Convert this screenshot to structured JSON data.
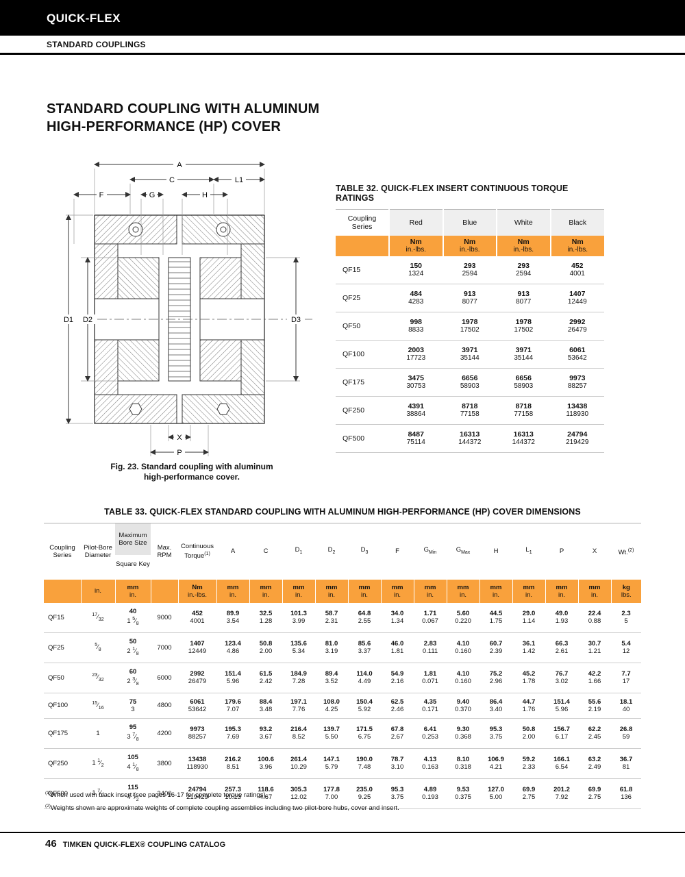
{
  "colors": {
    "accent_orange": "#F9A13C",
    "header_gray": "#EFEFEF",
    "bore_gray": "#E4E4E4",
    "bar_black": "#000000"
  },
  "header": {
    "brand": "QUICK-FLEX",
    "section": "STANDARD COUPLINGS"
  },
  "title": {
    "line1": "STANDARD COUPLING WITH ALUMINUM",
    "line2": "HIGH-PERFORMANCE (HP) COVER"
  },
  "figure": {
    "caption_line1": "Fig. 23. Standard coupling with aluminum",
    "caption_line2": "high-performance cover.",
    "labels": {
      "a": "A",
      "c": "C",
      "l1": "L1",
      "f": "F",
      "g": "G",
      "h": "H",
      "d1": "D1",
      "d2": "D2",
      "d3": "D3",
      "x": "X",
      "p": "P"
    }
  },
  "table32": {
    "title": "TABLE 32. QUICK-FLEX INSERT CONTINUOUS TORQUE RATINGS",
    "col_series": "Coupling Series",
    "col_headers": [
      "Red",
      "Blue",
      "White",
      "Black"
    ],
    "unit_top": "Nm",
    "unit_bottom": "in.-lbs.",
    "rows": [
      {
        "series": "QF15",
        "values": [
          [
            "150",
            "1324"
          ],
          [
            "293",
            "2594"
          ],
          [
            "293",
            "2594"
          ],
          [
            "452",
            "4001"
          ]
        ]
      },
      {
        "series": "QF25",
        "values": [
          [
            "484",
            "4283"
          ],
          [
            "913",
            "8077"
          ],
          [
            "913",
            "8077"
          ],
          [
            "1407",
            "12449"
          ]
        ]
      },
      {
        "series": "QF50",
        "values": [
          [
            "998",
            "8833"
          ],
          [
            "1978",
            "17502"
          ],
          [
            "1978",
            "17502"
          ],
          [
            "2992",
            "26479"
          ]
        ]
      },
      {
        "series": "QF100",
        "values": [
          [
            "2003",
            "17723"
          ],
          [
            "3971",
            "35144"
          ],
          [
            "3971",
            "35144"
          ],
          [
            "6061",
            "53642"
          ]
        ]
      },
      {
        "series": "QF175",
        "values": [
          [
            "3475",
            "30753"
          ],
          [
            "6656",
            "58903"
          ],
          [
            "6656",
            "58903"
          ],
          [
            "9973",
            "88257"
          ]
        ]
      },
      {
        "series": "QF250",
        "values": [
          [
            "4391",
            "38864"
          ],
          [
            "8718",
            "77158"
          ],
          [
            "8718",
            "77158"
          ],
          [
            "13438",
            "118930"
          ]
        ]
      },
      {
        "series": "QF500",
        "values": [
          [
            "8487",
            "75114"
          ],
          [
            "16313",
            "144372"
          ],
          [
            "16313",
            "144372"
          ],
          [
            "24794",
            "219429"
          ]
        ]
      }
    ]
  },
  "table33": {
    "title": "TABLE 33. QUICK-FLEX STANDARD COUPLING WITH ALUMINUM HIGH-PERFORMANCE (HP) COVER DIMENSIONS",
    "headers": {
      "series": "Coupling Series",
      "pilot": "Pilot-Bore Diameter",
      "bore_top": "Maximum Bore Size",
      "bore_bottom": "Square Key",
      "rpm": "Max. RPM",
      "torque": "Continuous Torque",
      "torque_sup": "(1)",
      "a": "A",
      "c": "C",
      "d": "D",
      "d1_sub": "1",
      "d2_sub": "2",
      "d3_sub": "3",
      "f": "F",
      "g": "G",
      "gmin_sub": "Min",
      "gmax_sub": "Max",
      "h": "H",
      "l": "L",
      "l1_sub": "1",
      "p": "P",
      "x": "X",
      "wt": "Wt.",
      "wt_sup": "(2)"
    },
    "units": {
      "pilot": "in.",
      "mm": "mm",
      "inch": "in.",
      "nm": "Nm",
      "inlbs": "in.-lbs.",
      "kg": "kg",
      "lbs": "lbs."
    },
    "rows": [
      {
        "series": "QF15",
        "pilot": "17/32",
        "bore_mm": "40",
        "bore_in": "1 5/8",
        "rpm": "9000",
        "cells": [
          [
            "452",
            "4001"
          ],
          [
            "89.9",
            "3.54"
          ],
          [
            "32.5",
            "1.28"
          ],
          [
            "101.3",
            "3.99"
          ],
          [
            "58.7",
            "2.31"
          ],
          [
            "64.8",
            "2.55"
          ],
          [
            "34.0",
            "1.34"
          ],
          [
            "1.71",
            "0.067"
          ],
          [
            "5.60",
            "0.220"
          ],
          [
            "44.5",
            "1.75"
          ],
          [
            "29.0",
            "1.14"
          ],
          [
            "49.0",
            "1.93"
          ],
          [
            "22.4",
            "0.88"
          ],
          [
            "2.3",
            "5"
          ]
        ]
      },
      {
        "series": "QF25",
        "pilot": "5/8",
        "bore_mm": "50",
        "bore_in": "2 1/8",
        "rpm": "7000",
        "cells": [
          [
            "1407",
            "12449"
          ],
          [
            "123.4",
            "4.86"
          ],
          [
            "50.8",
            "2.00"
          ],
          [
            "135.6",
            "5.34"
          ],
          [
            "81.0",
            "3.19"
          ],
          [
            "85.6",
            "3.37"
          ],
          [
            "46.0",
            "1.81"
          ],
          [
            "2.83",
            "0.111"
          ],
          [
            "4.10",
            "0.160"
          ],
          [
            "60.7",
            "2.39"
          ],
          [
            "36.1",
            "1.42"
          ],
          [
            "66.3",
            "2.61"
          ],
          [
            "30.7",
            "1.21"
          ],
          [
            "5.4",
            "12"
          ]
        ]
      },
      {
        "series": "QF50",
        "pilot": "23/32",
        "bore_mm": "60",
        "bore_in": "2 3/8",
        "rpm": "6000",
        "cells": [
          [
            "2992",
            "26479"
          ],
          [
            "151.4",
            "5.96"
          ],
          [
            "61.5",
            "2.42"
          ],
          [
            "184.9",
            "7.28"
          ],
          [
            "89.4",
            "3.52"
          ],
          [
            "114.0",
            "4.49"
          ],
          [
            "54.9",
            "2.16"
          ],
          [
            "1.81",
            "0.071"
          ],
          [
            "4.10",
            "0.160"
          ],
          [
            "75.2",
            "2.96"
          ],
          [
            "45.2",
            "1.78"
          ],
          [
            "76.7",
            "3.02"
          ],
          [
            "42.2",
            "1.66"
          ],
          [
            "7.7",
            "17"
          ]
        ]
      },
      {
        "series": "QF100",
        "pilot": "15/16",
        "bore_mm": "75",
        "bore_in": "3",
        "rpm": "4800",
        "cells": [
          [
            "6061",
            "53642"
          ],
          [
            "179.6",
            "7.07"
          ],
          [
            "88.4",
            "3.48"
          ],
          [
            "197.1",
            "7.76"
          ],
          [
            "108.0",
            "4.25"
          ],
          [
            "150.4",
            "5.92"
          ],
          [
            "62.5",
            "2.46"
          ],
          [
            "4.35",
            "0.171"
          ],
          [
            "9.40",
            "0.370"
          ],
          [
            "86.4",
            "3.40"
          ],
          [
            "44.7",
            "1.76"
          ],
          [
            "151.4",
            "5.96"
          ],
          [
            "55.6",
            "2.19"
          ],
          [
            "18.1",
            "40"
          ]
        ]
      },
      {
        "series": "QF175",
        "pilot": "1",
        "bore_mm": "95",
        "bore_in": "3 7/8",
        "rpm": "4200",
        "cells": [
          [
            "9973",
            "88257"
          ],
          [
            "195.3",
            "7.69"
          ],
          [
            "93.2",
            "3.67"
          ],
          [
            "216.4",
            "8.52"
          ],
          [
            "139.7",
            "5.50"
          ],
          [
            "171.5",
            "6.75"
          ],
          [
            "67.8",
            "2.67"
          ],
          [
            "6.41",
            "0.253"
          ],
          [
            "9.30",
            "0.368"
          ],
          [
            "95.3",
            "3.75"
          ],
          [
            "50.8",
            "2.00"
          ],
          [
            "156.7",
            "6.17"
          ],
          [
            "62.2",
            "2.45"
          ],
          [
            "26.8",
            "59"
          ]
        ]
      },
      {
        "series": "QF250",
        "pilot": "1 1/2",
        "bore_mm": "105",
        "bore_in": "4 1/8",
        "rpm": "3800",
        "cells": [
          [
            "13438",
            "118930"
          ],
          [
            "216.2",
            "8.51"
          ],
          [
            "100.6",
            "3.96"
          ],
          [
            "261.4",
            "10.29"
          ],
          [
            "147.1",
            "5.79"
          ],
          [
            "190.0",
            "7.48"
          ],
          [
            "78.7",
            "3.10"
          ],
          [
            "4.13",
            "0.163"
          ],
          [
            "8.10",
            "0.318"
          ],
          [
            "106.9",
            "4.21"
          ],
          [
            "59.2",
            "2.33"
          ],
          [
            "166.1",
            "6.54"
          ],
          [
            "63.2",
            "2.49"
          ],
          [
            "36.7",
            "81"
          ]
        ]
      },
      {
        "series": "QF500",
        "pilot": "1 7/8",
        "bore_mm": "115",
        "bore_in": "4 1/2",
        "rpm": "3400",
        "cells": [
          [
            "24794",
            "219429"
          ],
          [
            "257.3",
            "10.13"
          ],
          [
            "118.6",
            "4.67"
          ],
          [
            "305.3",
            "12.02"
          ],
          [
            "177.8",
            "7.00"
          ],
          [
            "235.0",
            "9.25"
          ],
          [
            "95.3",
            "3.75"
          ],
          [
            "4.89",
            "0.193"
          ],
          [
            "9.53",
            "0.375"
          ],
          [
            "127.0",
            "5.00"
          ],
          [
            "69.9",
            "2.75"
          ],
          [
            "201.2",
            "7.92"
          ],
          [
            "69.9",
            "2.75"
          ],
          [
            "61.8",
            "136"
          ]
        ]
      }
    ]
  },
  "footnotes": [
    {
      "sup": "(1)",
      "text": "When used with black insert (see pages 16-17 for complete torque ratings)."
    },
    {
      "sup": "(2)",
      "text": "Weights shown are approximate weights of complete coupling assemblies including two pilot-bore hubs, cover and insert."
    }
  ],
  "footer": {
    "page_number": "46",
    "text": "TIMKEN QUICK-FLEX® COUPLING CATALOG"
  }
}
